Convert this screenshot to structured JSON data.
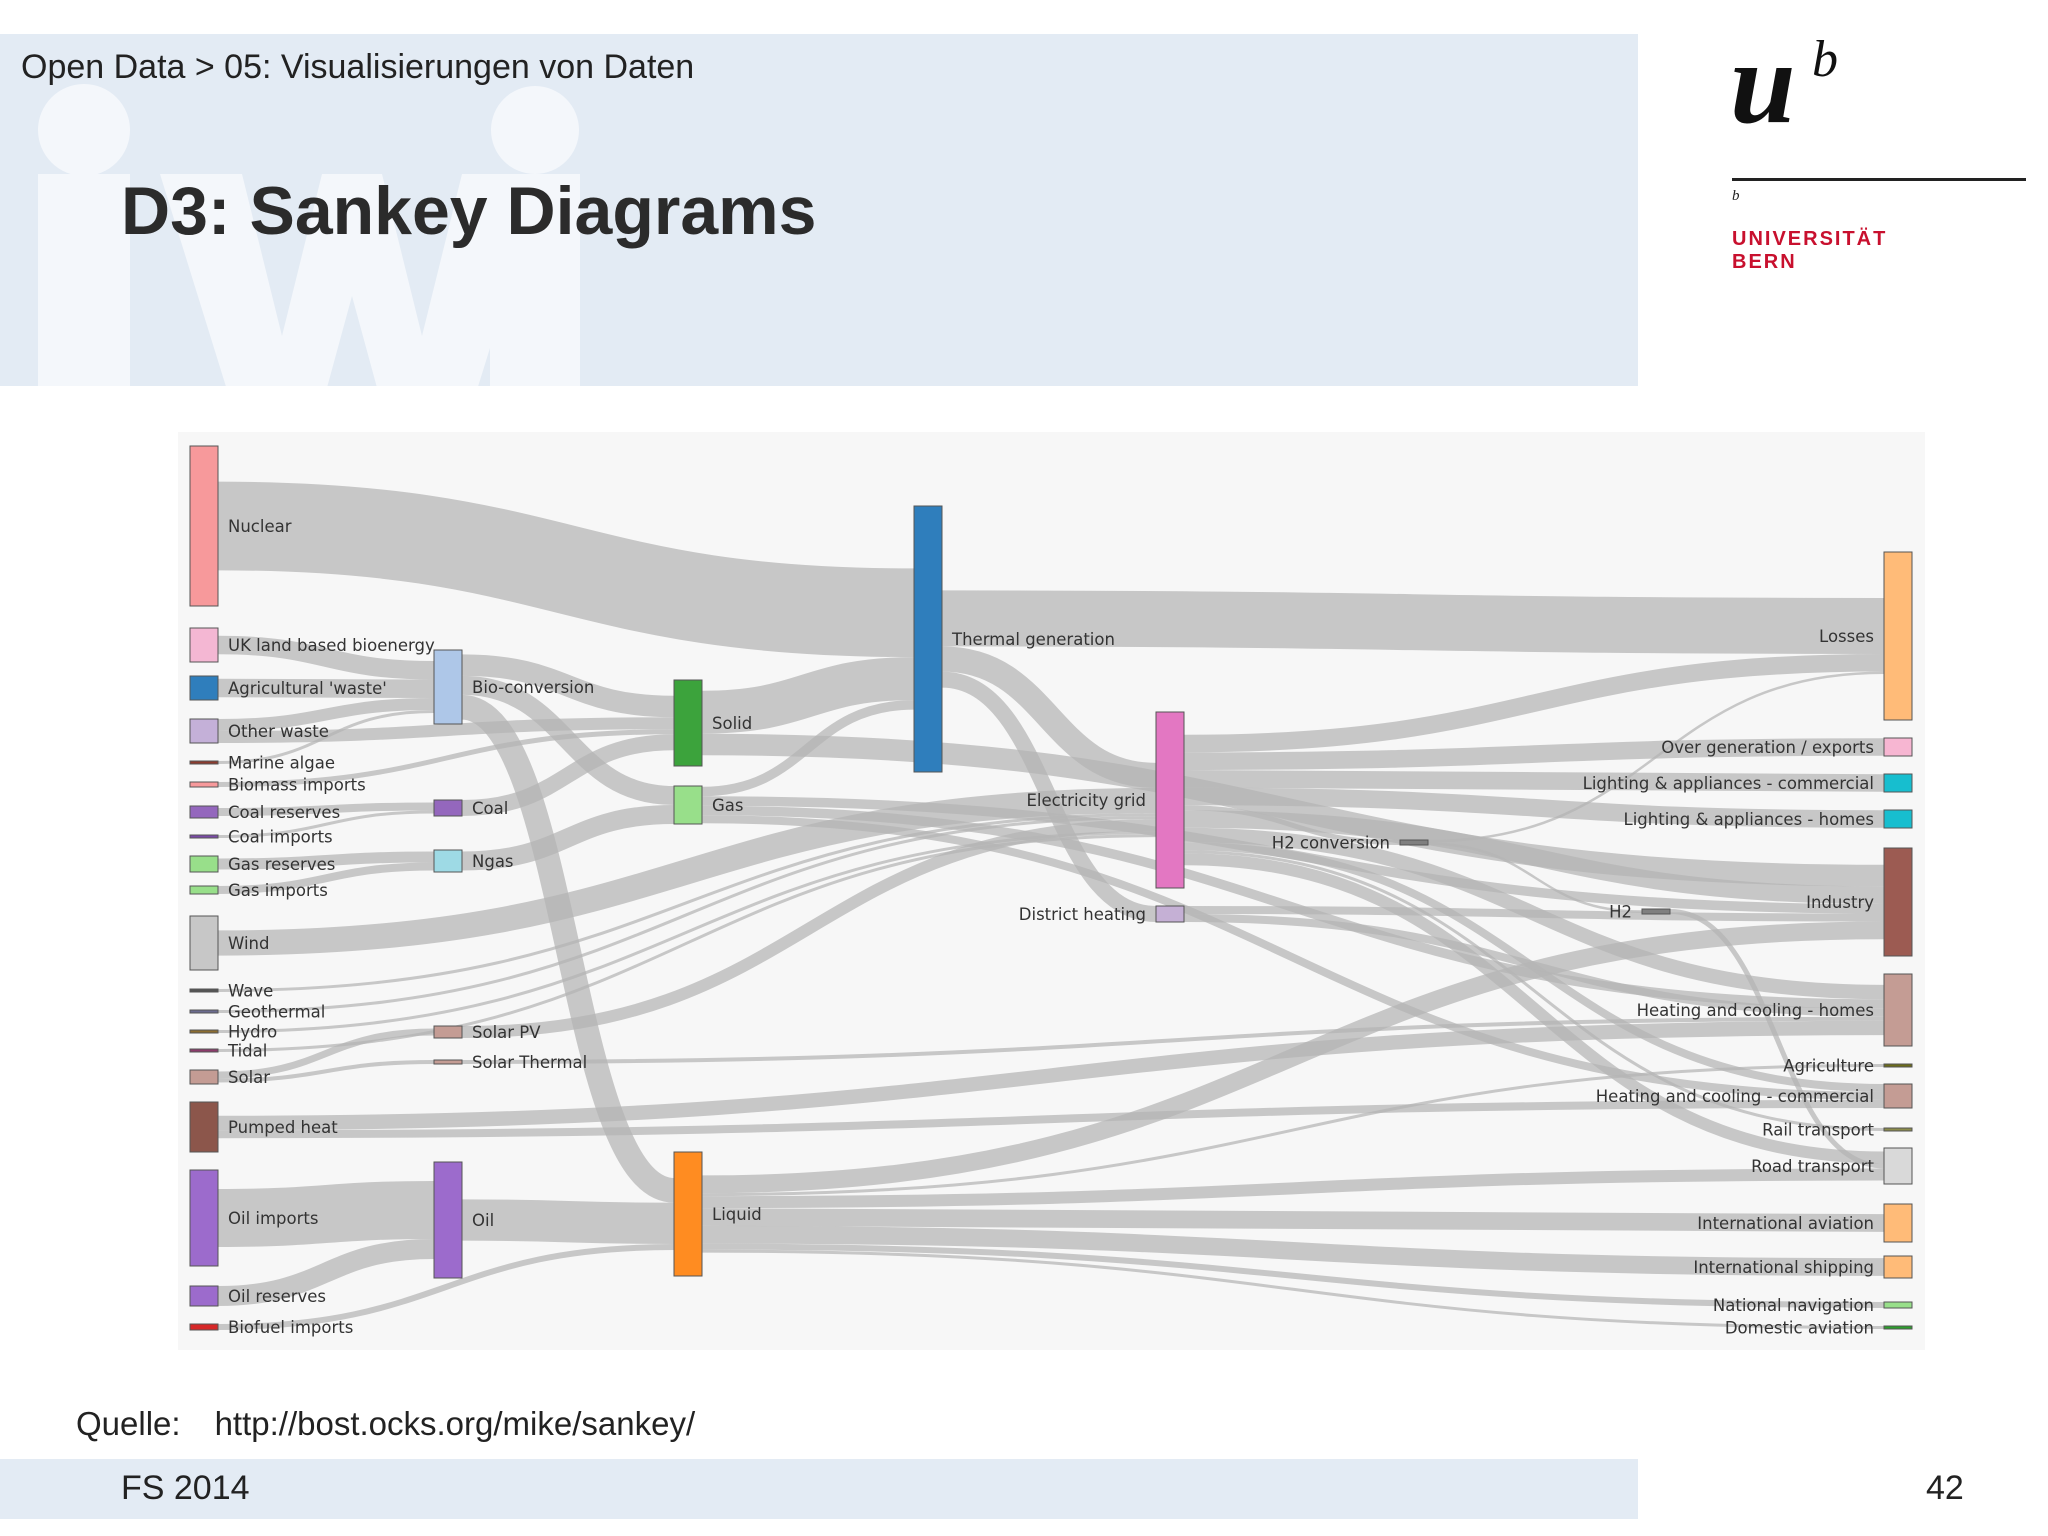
{
  "header": {
    "breadcrumb": "Open Data > 05: Visualisierungen von Daten",
    "title": "D3: Sankey Diagrams"
  },
  "logo": {
    "mark": "u",
    "superscript": "b",
    "b_small": "b",
    "line1": "UNIVERSITÄT",
    "line2": "BERN",
    "brand_color": "#c8102e"
  },
  "sankey": {
    "link_color": "#b4b4b4",
    "nodes": [
      {
        "id": "nuclear",
        "label": "Nuclear",
        "color": "#f7999b"
      },
      {
        "id": "uk_bio",
        "label": "UK land based bioenergy",
        "color": "#f4b7d3"
      },
      {
        "id": "agri_waste",
        "label": "Agricultural 'waste'",
        "color": "#2f7ebc"
      },
      {
        "id": "other_waste",
        "label": "Other waste",
        "color": "#c4b0d8"
      },
      {
        "id": "marine",
        "label": "Marine algae",
        "color": "#8c3b2e"
      },
      {
        "id": "biomass_imp",
        "label": "Biomass imports",
        "color": "#f7999b"
      },
      {
        "id": "coal_res",
        "label": "Coal reserves",
        "color": "#9467bd"
      },
      {
        "id": "coal_imp",
        "label": "Coal imports",
        "color": "#7a4aa8"
      },
      {
        "id": "gas_res",
        "label": "Gas reserves",
        "color": "#98df8a"
      },
      {
        "id": "gas_imp",
        "label": "Gas imports",
        "color": "#98df8a"
      },
      {
        "id": "wind",
        "label": "Wind",
        "color": "#c7c7c7"
      },
      {
        "id": "wave",
        "label": "Wave",
        "color": "#555555"
      },
      {
        "id": "geothermal",
        "label": "Geothermal",
        "color": "#6b6b8f"
      },
      {
        "id": "hydro",
        "label": "Hydro",
        "color": "#8c6d31"
      },
      {
        "id": "tidal",
        "label": "Tidal",
        "color": "#8c3b6b"
      },
      {
        "id": "solar",
        "label": "Solar",
        "color": "#c49c94"
      },
      {
        "id": "pumped",
        "label": "Pumped heat",
        "color": "#8c564b"
      },
      {
        "id": "oil_imp",
        "label": "Oil imports",
        "color": "#9c6bcc"
      },
      {
        "id": "oil_res",
        "label": "Oil reserves",
        "color": "#9c6bcc"
      },
      {
        "id": "biofuel_imp",
        "label": "Biofuel imports",
        "color": "#d62728"
      },
      {
        "id": "bio_conv",
        "label": "Bio-conversion",
        "color": "#aec7e8"
      },
      {
        "id": "coal",
        "label": "Coal",
        "color": "#9467bd"
      },
      {
        "id": "ngas",
        "label": "Ngas",
        "color": "#9edae5"
      },
      {
        "id": "solar_pv",
        "label": "Solar PV",
        "color": "#c49c94"
      },
      {
        "id": "solar_thermal",
        "label": "Solar Thermal",
        "color": "#c49c94"
      },
      {
        "id": "oil",
        "label": "Oil",
        "color": "#9c6bcc"
      },
      {
        "id": "solid",
        "label": "Solid",
        "color": "#3ca33c"
      },
      {
        "id": "gas",
        "label": "Gas",
        "color": "#98df8a"
      },
      {
        "id": "liquid",
        "label": "Liquid",
        "color": "#ff8c21"
      },
      {
        "id": "thermal",
        "label": "Thermal generation",
        "color": "#2f7ebc"
      },
      {
        "id": "elec",
        "label": "Electricity grid",
        "color": "#e377c2"
      },
      {
        "id": "district",
        "label": "District heating",
        "color": "#c5b0d5"
      },
      {
        "id": "h2conv",
        "label": "H2 conversion",
        "color": "#7f7f7f"
      },
      {
        "id": "h2",
        "label": "H2",
        "color": "#7f7f7f"
      },
      {
        "id": "losses",
        "label": "Losses",
        "color": "#ffbb78"
      },
      {
        "id": "overgen",
        "label": "Over generation / exports",
        "color": "#f7b6d2"
      },
      {
        "id": "light_comm",
        "label": "Lighting & appliances - commercial",
        "color": "#17becf"
      },
      {
        "id": "light_homes",
        "label": "Lighting & appliances - homes",
        "color": "#17becf"
      },
      {
        "id": "industry",
        "label": "Industry",
        "color": "#9c5b52"
      },
      {
        "id": "heat_homes",
        "label": "Heating and cooling - homes",
        "color": "#c49c94"
      },
      {
        "id": "agriculture",
        "label": "Agriculture",
        "color": "#6b6b1a"
      },
      {
        "id": "heat_comm",
        "label": "Heating and cooling - commercial",
        "color": "#c49c94"
      },
      {
        "id": "rail",
        "label": "Rail transport",
        "color": "#8c8c4b"
      },
      {
        "id": "road",
        "label": "Road transport",
        "color": "#d9d9d9"
      },
      {
        "id": "intl_aviation",
        "label": "International aviation",
        "color": "#ffbb78"
      },
      {
        "id": "intl_shipping",
        "label": "International shipping",
        "color": "#ffbb78"
      },
      {
        "id": "nat_nav",
        "label": "National navigation",
        "color": "#98df8a"
      },
      {
        "id": "dom_aviation",
        "label": "Domestic aviation",
        "color": "#2ca02c"
      }
    ],
    "links": [
      {
        "source": "nuclear",
        "target": "thermal"
      },
      {
        "source": "uk_bio",
        "target": "bio_conv"
      },
      {
        "source": "agri_waste",
        "target": "bio_conv"
      },
      {
        "source": "other_waste",
        "target": "bio_conv"
      },
      {
        "source": "other_waste",
        "target": "solid"
      },
      {
        "source": "marine",
        "target": "bio_conv"
      },
      {
        "source": "biomass_imp",
        "target": "solid"
      },
      {
        "source": "coal_res",
        "target": "coal"
      },
      {
        "source": "coal_imp",
        "target": "coal"
      },
      {
        "source": "gas_res",
        "target": "ngas"
      },
      {
        "source": "gas_imp",
        "target": "ngas"
      },
      {
        "source": "wind",
        "target": "elec"
      },
      {
        "source": "wave",
        "target": "elec"
      },
      {
        "source": "geothermal",
        "target": "elec"
      },
      {
        "source": "hydro",
        "target": "elec"
      },
      {
        "source": "tidal",
        "target": "elec"
      },
      {
        "source": "solar",
        "target": "solar_pv"
      },
      {
        "source": "solar",
        "target": "solar_thermal"
      },
      {
        "source": "pumped",
        "target": "heat_homes"
      },
      {
        "source": "pumped",
        "target": "heat_comm"
      },
      {
        "source": "oil_imp",
        "target": "oil"
      },
      {
        "source": "oil_res",
        "target": "oil"
      },
      {
        "source": "biofuel_imp",
        "target": "liquid"
      },
      {
        "source": "bio_conv",
        "target": "solid"
      },
      {
        "source": "bio_conv",
        "target": "gas"
      },
      {
        "source": "bio_conv",
        "target": "liquid"
      },
      {
        "source": "coal",
        "target": "solid"
      },
      {
        "source": "ngas",
        "target": "gas"
      },
      {
        "source": "solar_pv",
        "target": "elec"
      },
      {
        "source": "solar_thermal",
        "target": "heat_homes"
      },
      {
        "source": "oil",
        "target": "liquid"
      },
      {
        "source": "solid",
        "target": "thermal"
      },
      {
        "source": "solid",
        "target": "industry"
      },
      {
        "source": "gas",
        "target": "thermal"
      },
      {
        "source": "gas",
        "target": "industry"
      },
      {
        "source": "gas",
        "target": "heat_homes"
      },
      {
        "source": "gas",
        "target": "heat_comm"
      },
      {
        "source": "liquid",
        "target": "industry"
      },
      {
        "source": "liquid",
        "target": "road"
      },
      {
        "source": "liquid",
        "target": "intl_aviation"
      },
      {
        "source": "liquid",
        "target": "intl_shipping"
      },
      {
        "source": "liquid",
        "target": "nat_nav"
      },
      {
        "source": "liquid",
        "target": "dom_aviation"
      },
      {
        "source": "liquid",
        "target": "agriculture"
      },
      {
        "source": "thermal",
        "target": "losses"
      },
      {
        "source": "thermal",
        "target": "elec"
      },
      {
        "source": "thermal",
        "target": "district"
      },
      {
        "source": "elec",
        "target": "overgen"
      },
      {
        "source": "elec",
        "target": "light_comm"
      },
      {
        "source": "elec",
        "target": "light_homes"
      },
      {
        "source": "elec",
        "target": "industry"
      },
      {
        "source": "elec",
        "target": "heat_homes"
      },
      {
        "source": "elec",
        "target": "heat_comm"
      },
      {
        "source": "elec",
        "target": "h2conv"
      },
      {
        "source": "elec",
        "target": "rail"
      },
      {
        "source": "elec",
        "target": "road"
      },
      {
        "source": "elec",
        "target": "losses"
      },
      {
        "source": "district",
        "target": "heat_homes"
      },
      {
        "source": "district",
        "target": "industry"
      },
      {
        "source": "h2conv",
        "target": "h2"
      },
      {
        "source": "h2conv",
        "target": "losses"
      },
      {
        "source": "h2",
        "target": "road"
      }
    ]
  },
  "source": {
    "label": "Quelle:",
    "url": "http://bost.ocks.org/mike/sankey/"
  },
  "footer": {
    "term": "FS 2014",
    "page_number": "42"
  }
}
